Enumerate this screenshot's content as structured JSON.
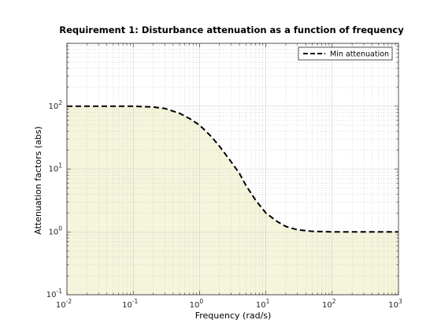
{
  "chart_data": {
    "type": "line",
    "title": "Requirement 1: Disturbance attenuation as a function of frequency",
    "xlabel": "Frequency (rad/s)",
    "ylabel": "Attenuation factors (abs)",
    "xscale": "log",
    "yscale": "log",
    "xlim": [
      0.01,
      1000
    ],
    "ylim": [
      0.1,
      1000
    ],
    "x_ticks": [
      0.01,
      0.1,
      1,
      10,
      100,
      1000
    ],
    "y_ticks": [
      0.1,
      1,
      10,
      100
    ],
    "x_tick_labels": [
      {
        "base": "10",
        "exp": "-2"
      },
      {
        "base": "10",
        "exp": "-1"
      },
      {
        "base": "10",
        "exp": "0"
      },
      {
        "base": "10",
        "exp": "1"
      },
      {
        "base": "10",
        "exp": "2"
      },
      {
        "base": "10",
        "exp": "3"
      }
    ],
    "y_tick_labels": [
      {
        "base": "10",
        "exp": "-1"
      },
      {
        "base": "10",
        "exp": "0"
      },
      {
        "base": "10",
        "exp": "1"
      },
      {
        "base": "10",
        "exp": "2"
      }
    ],
    "grid": true,
    "legend_position": "top-right",
    "series": [
      {
        "name": "Min attenuation",
        "style": "dashed",
        "color": "#000000",
        "x": [
          0.01,
          0.1,
          0.2,
          0.3,
          0.5,
          0.7,
          1,
          1.5,
          2,
          3,
          4,
          5,
          7,
          10,
          15,
          20,
          30,
          50,
          100,
          300,
          1000
        ],
        "y": [
          100,
          100,
          97,
          92,
          77,
          64,
          50,
          33,
          23,
          13,
          8.5,
          5.5,
          3.2,
          2.0,
          1.45,
          1.22,
          1.08,
          1.02,
          1.0,
          1.0,
          1.0
        ]
      }
    ],
    "shaded_region": {
      "description": "feasible region below requirement",
      "color": "#f5f5dc"
    }
  }
}
